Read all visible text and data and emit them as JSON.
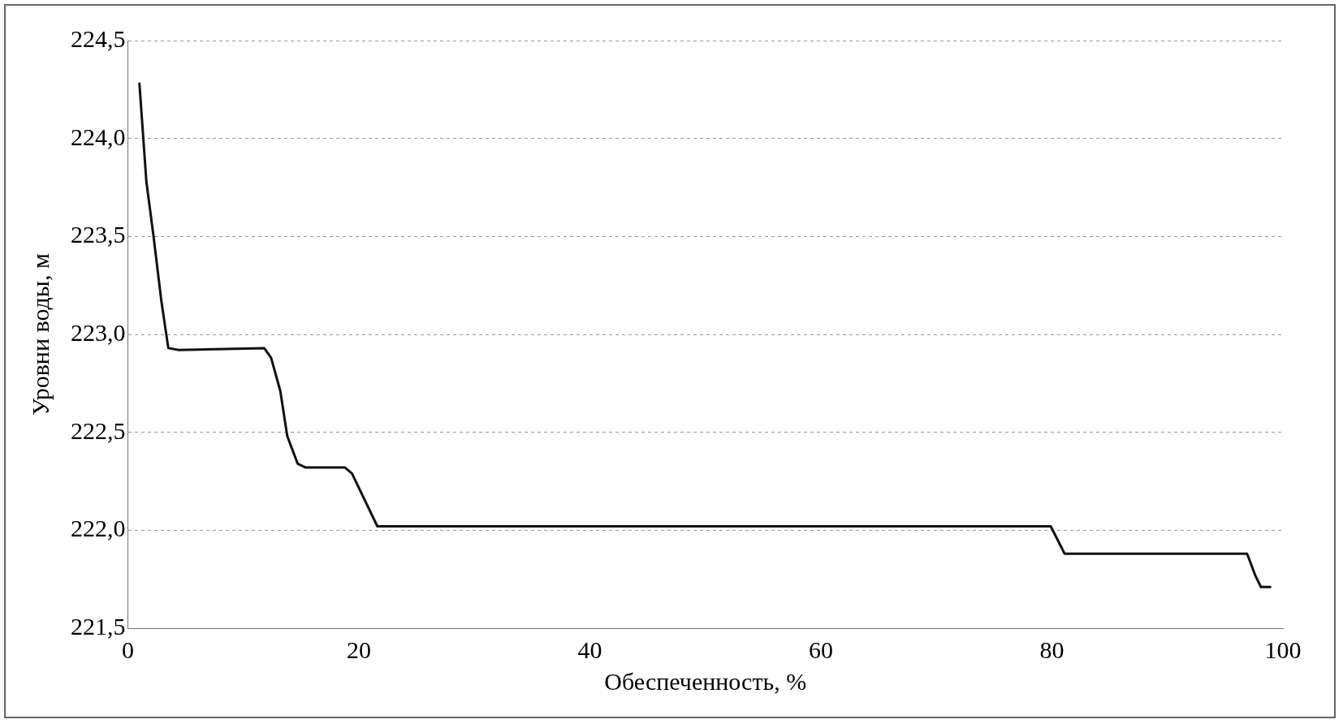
{
  "chart_data": {
    "type": "line",
    "xlabel": "Обеспеченность, %",
    "ylabel": "Уровни воды, м",
    "xlim": [
      0,
      100
    ],
    "xticks": [
      0,
      20,
      40,
      60,
      80,
      100
    ],
    "ylim": [
      221.5,
      224.5
    ],
    "yticks": [
      {
        "value": 221.5,
        "label": "221,5"
      },
      {
        "value": 222,
        "label": "222,0"
      },
      {
        "value": 222.5,
        "label": "222,5"
      },
      {
        "value": 223,
        "label": "223,0"
      },
      {
        "value": 223.5,
        "label": "223,5"
      },
      {
        "value": 224,
        "label": "224,0"
      },
      {
        "value": 224.5,
        "label": "224,5"
      }
    ],
    "grid": "y",
    "legend": false,
    "marker": "none",
    "line_style": "solid",
    "series": [
      {
        "color": "#111111",
        "x": [
          1.0,
          1.6,
          2.2,
          2.9,
          3.5,
          4.4,
          11.8,
          12.4,
          13.2,
          13.8,
          14.7,
          15.4,
          18.8,
          19.4,
          21.6,
          22.7,
          79.9,
          81.1,
          96.9,
          97.6,
          98.1,
          98.9
        ],
        "values": [
          224.28,
          223.78,
          223.51,
          223.17,
          222.93,
          222.92,
          222.93,
          222.88,
          222.71,
          222.48,
          222.34,
          222.32,
          222.32,
          222.29,
          222.02,
          222.02,
          222.02,
          221.88,
          221.88,
          221.77,
          221.71,
          221.71
        ]
      }
    ]
  }
}
